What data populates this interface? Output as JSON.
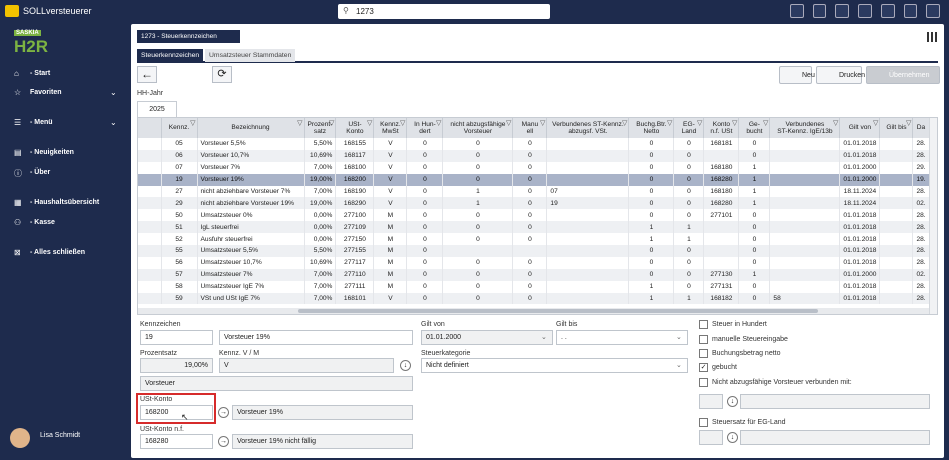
{
  "app": {
    "title": "SOLLversteuerer",
    "search": "1273"
  },
  "logo": {
    "brand": "SASKIA",
    "product": "H2R"
  },
  "nav": [
    "- Start",
    "Favoriten",
    "- Menü",
    "- Neuigkeiten",
    "- Über",
    "- Haushaltsübersicht",
    "- Kasse",
    "- Alles schließen"
  ],
  "user": "Lisa Schmidt",
  "window": {
    "title": "1273 - Steuerkennzeichen",
    "tabs": [
      "Steuerkennzeichen",
      "Umsatzsteuer Stammdaten"
    ],
    "buttons": [
      "Neu",
      "Drucken",
      "Übernehmen"
    ]
  },
  "year": {
    "label": "HH-Jahr",
    "value": "2025"
  },
  "table": {
    "columns": [
      "Kennz.",
      "Bezeichnung",
      "Prozent-\nsatz",
      "USt-\nKonto",
      "Kennz.\nMwSt",
      "In Hun-\ndert",
      "nicht abzugsfähige\nVorsteuer",
      "Manu\nell",
      "Verbundenes ST-Kennz.\nabzugsf. VSt.",
      "Buchg.Btr.\nNetto",
      "EG-\nLand",
      "Konto\nn.f. USt",
      "Ge-\nbucht",
      "Verbundenes\nST-Kennz. IgE/13b",
      "Gilt von",
      "Gilt bis",
      "Da"
    ],
    "selected_row": 3,
    "rows": [
      [
        "05",
        "Vorsteuer 5,5%",
        "5,50%",
        "168155",
        "V",
        "0",
        "0",
        "0",
        null,
        "0",
        "0",
        "168181",
        "0",
        null,
        "01.01.2018",
        null,
        "28."
      ],
      [
        "06",
        "Vorsteuer 10,7%",
        "10,69%",
        "168117",
        "V",
        "0",
        "0",
        "0",
        null,
        "0",
        "0",
        null,
        "0",
        null,
        "01.01.2018",
        null,
        "28."
      ],
      [
        "07",
        "Vorsteuer 7%",
        "7,00%",
        "168100",
        "V",
        "0",
        "0",
        "0",
        null,
        "0",
        "0",
        "168180",
        "1",
        null,
        "01.01.2000",
        null,
        "29."
      ],
      [
        "19",
        "Vorsteuer 19%",
        "19,00%",
        "168200",
        "V",
        "0",
        "0",
        "0",
        null,
        "0",
        "0",
        "168280",
        "1",
        null,
        "01.01.2000",
        null,
        "19."
      ],
      [
        "27",
        "nicht abziehbare Vorsteuer 7%",
        "7,00%",
        "168190",
        "V",
        "0",
        "1",
        "0",
        "07",
        "0",
        "0",
        "168180",
        "1",
        null,
        "18.11.2024",
        null,
        "28."
      ],
      [
        "29",
        "nicht abziehbare Vorsteuer 19%",
        "19,00%",
        "168290",
        "V",
        "0",
        "1",
        "0",
        "19",
        "0",
        "0",
        "168280",
        "1",
        null,
        "18.11.2024",
        null,
        "02."
      ],
      [
        "50",
        "Umsatzsteuer 0%",
        "0,00%",
        "277100",
        "M",
        "0",
        "0",
        "0",
        null,
        "0",
        "0",
        "277101",
        "0",
        null,
        "01.01.2018",
        null,
        "28."
      ],
      [
        "51",
        "IgL steuerfrei",
        "0,00%",
        "277109",
        "M",
        "0",
        "0",
        "0",
        null,
        "1",
        "1",
        null,
        "0",
        null,
        "01.01.2018",
        null,
        "28."
      ],
      [
        "52",
        "Ausfuhr steuerfrei",
        "0,00%",
        "277150",
        "M",
        "0",
        "0",
        "0",
        null,
        "1",
        "1",
        null,
        "0",
        null,
        "01.01.2018",
        null,
        "28."
      ],
      [
        "55",
        "Umsatzsteuer 5,5%",
        "5,50%",
        "277155",
        "M",
        "0",
        null,
        null,
        null,
        "0",
        "0",
        null,
        "0",
        null,
        "01.01.2018",
        null,
        "28."
      ],
      [
        "56",
        "Umsatzsteuer 10,7%",
        "10,69%",
        "277117",
        "M",
        "0",
        "0",
        "0",
        null,
        "0",
        "0",
        null,
        "0",
        null,
        "01.01.2018",
        null,
        "28."
      ],
      [
        "57",
        "Umsatzsteuer 7%",
        "7,00%",
        "277110",
        "M",
        "0",
        "0",
        "0",
        null,
        "0",
        "0",
        "277130",
        "1",
        null,
        "01.01.2000",
        null,
        "02."
      ],
      [
        "58",
        "Umsatzsteuer IgE 7%",
        "7,00%",
        "277111",
        "M",
        "0",
        "0",
        "0",
        null,
        "1",
        "0",
        "277131",
        "0",
        null,
        "01.01.2018",
        null,
        "28."
      ],
      [
        "59",
        "VSt und USt IgE 7%",
        "7,00%",
        "168101",
        "V",
        "0",
        "0",
        "0",
        null,
        "1",
        "1",
        "168182",
        "0",
        "58",
        "01.01.2018",
        null,
        "28."
      ]
    ]
  },
  "form": {
    "kennzeichen": {
      "label": "Kennzeichen",
      "code": "19",
      "name": "Vorsteuer 19%"
    },
    "prozentsatz": {
      "label": "Prozentsatz",
      "value": "19,00%"
    },
    "kennz_vm": {
      "label": "Kennz. V / M",
      "value": "V"
    },
    "vorsteuer": "Vorsteuer",
    "ust_konto": {
      "label": "USt-Konto",
      "code": "168200",
      "name": "Vorsteuer 19%"
    },
    "ust_konto_nf": {
      "label": "USt-Konto n.f.",
      "code": "168280",
      "name": "Vorsteuer 19% nicht fällig"
    },
    "gilt_von": {
      "label": "Gilt von",
      "value": "01.01.2000"
    },
    "gilt_bis": {
      "label": "Gilt bis",
      "value": ". ."
    },
    "steuerkategorie": {
      "label": "Steuerkategorie",
      "value": "Nicht definiert"
    },
    "checks": [
      {
        "label": "Steuer in Hundert",
        "checked": false
      },
      {
        "label": "manuelle Steuereingabe",
        "checked": false
      },
      {
        "label": "Buchungsbetrag netto",
        "checked": false
      },
      {
        "label": "gebucht",
        "checked": true
      },
      {
        "label": "Nicht abzugsfähige Vorsteuer verbunden mit:",
        "checked": false
      },
      {
        "label": "Steuersatz für EG-Land",
        "checked": false
      }
    ]
  }
}
